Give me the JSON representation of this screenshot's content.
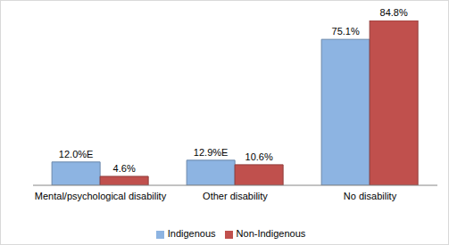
{
  "chart_data": {
    "type": "bar",
    "categories": [
      "Mental/psychological disability",
      "Other disability",
      "No disability"
    ],
    "series": [
      {
        "name": "Indigenous",
        "color": "#8db4e2",
        "values": [
          12.0,
          12.9,
          75.1
        ],
        "value_labels": [
          "12.0%E",
          "12.9%E",
          "75.1%"
        ]
      },
      {
        "name": "Non-Indigenous",
        "color": "#c0504d",
        "values": [
          4.6,
          10.6,
          84.8
        ],
        "value_labels": [
          "4.6%",
          "10.6%",
          "84.8%"
        ]
      }
    ],
    "data_labels": true,
    "legend": "bottom",
    "grid": false,
    "tick_labels": "x"
  }
}
